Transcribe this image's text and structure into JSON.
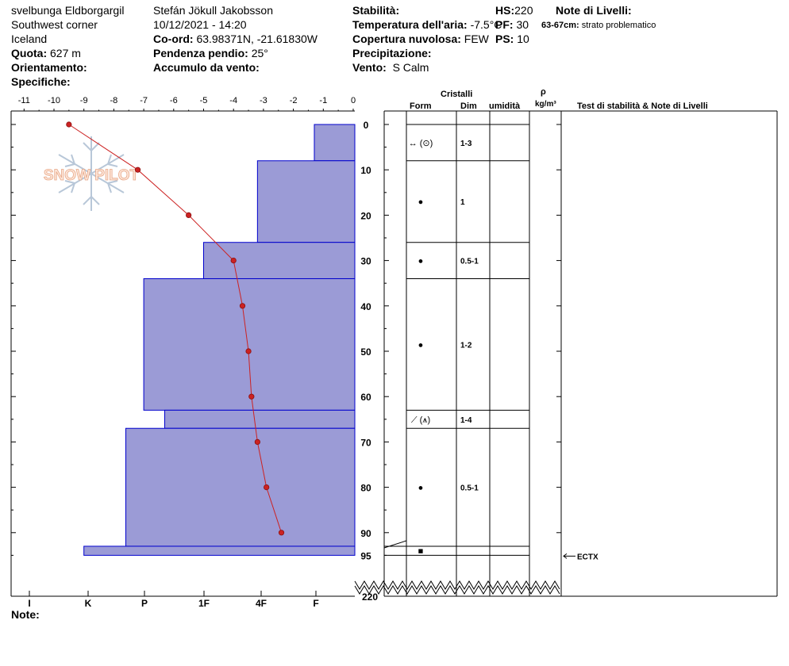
{
  "header": {
    "location_lines": [
      "svelbunga Eldborgargil",
      "Southwest corner",
      "Iceland"
    ],
    "quota_label": "Quota:",
    "quota_value": "627 m",
    "orientamento_label": "Orientamento:",
    "specifiche_label": "Specifiche:",
    "observer": "Stefán Jökull Jakobsson",
    "datetime": "10/12/2021 - 14:20",
    "coord_label": "Co-ord:",
    "coord_value": "63.98371N, -21.61830W",
    "pendenza_label": "Pendenza pendio:",
    "pendenza_value": "25°",
    "accumulo_label": "Accumulo da vento:",
    "stabilita_label": "Stabilità:",
    "temp_label": "Temperatura dell'aria:",
    "temp_value": "-7.5°C",
    "nuvolosa_label": "Copertura nuvolosa:",
    "nuvolosa_value": "FEW",
    "precip_label": "Precipitazione:",
    "vento_label": "Vento:",
    "vento_value": "S Calm",
    "hs_label": "HS:",
    "hs_value": "220",
    "pf_label": "PF:",
    "pf_value": "30",
    "ps_label": "PS:",
    "ps_value": "10",
    "note_livelli_label": "Note di Livelli:",
    "note_livelli_range": "63-67cm:",
    "note_livelli_text": "strato problematico"
  },
  "columns": {
    "cristalli": "Cristalli",
    "form": "Form",
    "dim": "Dim",
    "umidita": "umidità",
    "rho": "ρ",
    "density_unit": "kg/m³",
    "test": "Test di stabilità & Note di Livelli"
  },
  "footer": {
    "note_label": "Note:"
  },
  "logo_text": "SNOW PILOT",
  "colors": {
    "layer_fill": "#9b9bd6",
    "layer_stroke": "#0000cc",
    "temp_line": "#cc2222"
  },
  "chart_data": {
    "type": "bar",
    "depth_axis": {
      "ticks": [
        "0",
        "10",
        "20",
        "30",
        "40",
        "50",
        "60",
        "70",
        "80",
        "90",
        "95"
      ],
      "bottom_label": "220",
      "range": [
        0,
        95
      ],
      "unit": "cm"
    },
    "temp_axis": {
      "ticks": [
        "-11",
        "-10",
        "-9",
        "-8",
        "-7",
        "-6",
        "-5",
        "-4",
        "-3",
        "-2",
        "-1",
        "0"
      ],
      "range": [
        -11,
        0
      ]
    },
    "hardness_axis": {
      "ticks": [
        "I",
        "K",
        "P",
        "1F",
        "4F",
        "F"
      ]
    },
    "layers": [
      {
        "top": 0,
        "bottom": 8,
        "hardness_temp": -1.3,
        "form": "↔ (⊙)",
        "dim": "1-3"
      },
      {
        "top": 8,
        "bottom": 26,
        "hardness_temp": -3.2,
        "form": "●",
        "dim": "1"
      },
      {
        "top": 26,
        "bottom": 34,
        "hardness_temp": -5.0,
        "form": "●",
        "dim": "0.5-1"
      },
      {
        "top": 34,
        "bottom": 63,
        "hardness_temp": -7.0,
        "form": "●",
        "dim": "1-2"
      },
      {
        "top": 63,
        "bottom": 67,
        "hardness_temp": -6.3,
        "form": "⟋ (⩚)",
        "dim": "1-4"
      },
      {
        "top": 67,
        "bottom": 93,
        "hardness_temp": -7.6,
        "form": "●",
        "dim": "0.5-1"
      },
      {
        "top": 93,
        "bottom": 95,
        "hardness_temp": -9.0,
        "form": "■",
        "dim": ""
      }
    ],
    "temperature_profile": [
      {
        "depth": 0,
        "temp": -9.5
      },
      {
        "depth": 10,
        "temp": -7.2
      },
      {
        "depth": 20,
        "temp": -5.5
      },
      {
        "depth": 30,
        "temp": -4.0
      },
      {
        "depth": 40,
        "temp": -3.7
      },
      {
        "depth": 50,
        "temp": -3.5
      },
      {
        "depth": 60,
        "temp": -3.4
      },
      {
        "depth": 70,
        "temp": -3.2
      },
      {
        "depth": 80,
        "temp": -2.9
      },
      {
        "depth": 90,
        "temp": -2.4
      }
    ],
    "tests": [
      {
        "depth": 95,
        "label": "ECTX"
      }
    ]
  }
}
